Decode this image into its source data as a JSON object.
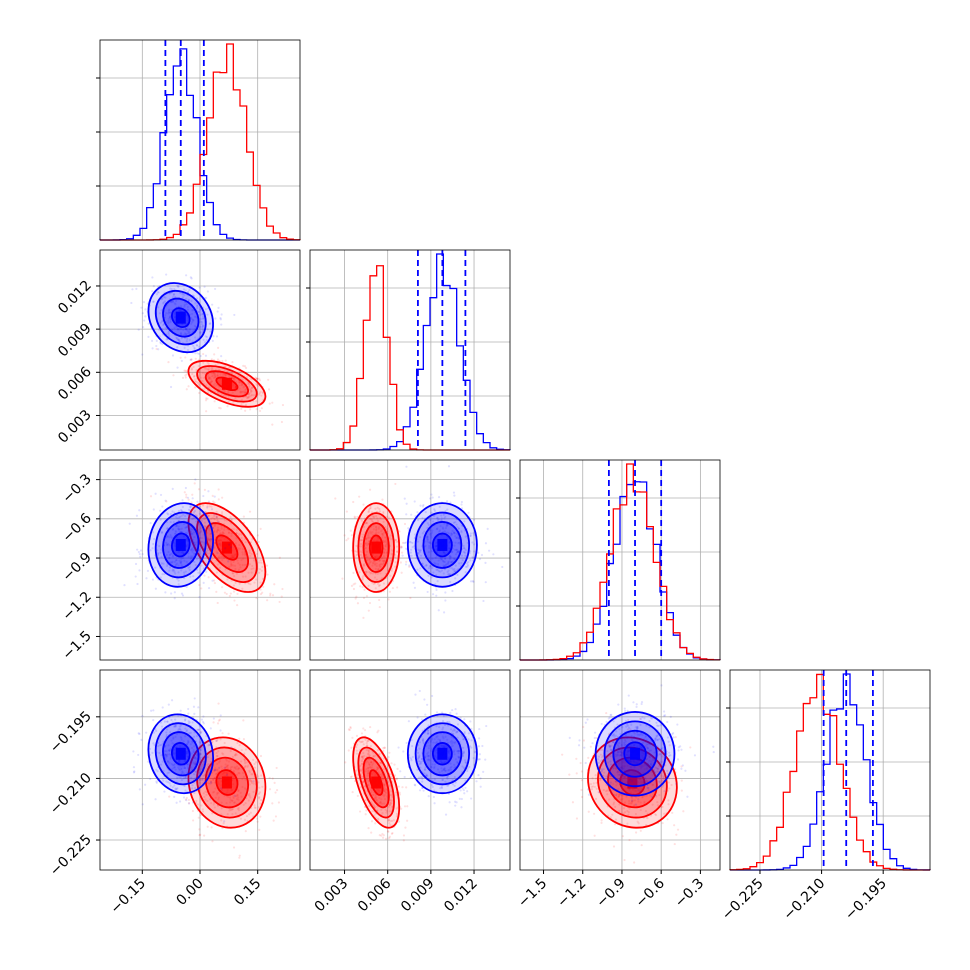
{
  "colors": {
    "series_a": "#0000ff",
    "series_b": "#ff0000",
    "grid": "#b0b0b0",
    "axes": "#000000"
  },
  "chart_data": {
    "type": "corner",
    "series": [
      {
        "color": "#0000ff",
        "medians": [
          -0.05,
          0.0098,
          -0.8,
          -0.204
        ],
        "quantiles": [
          [
            -0.09,
            -0.05,
            0.01
          ],
          [
            0.0081,
            0.0098,
            0.0114
          ],
          [
            -1.0,
            -0.8,
            -0.6
          ],
          [
            -0.2095,
            -0.204,
            -0.1975
          ]
        ],
        "sd": [
          0.042,
          0.0012,
          0.16,
          0.0048
        ]
      },
      {
        "color": "#ff0000",
        "medians": [
          0.07,
          0.0052,
          -0.82,
          -0.211
        ],
        "sd": [
          0.05,
          0.0008,
          0.17,
          0.0055
        ]
      }
    ],
    "correlations_a": {
      "1,0": -0.2,
      "2,0": 0.1,
      "2,1": 0.0,
      "3,0": -0.1,
      "3,1": 0.0,
      "3,2": 0.0
    },
    "correlations_b": {
      "1,0": -0.55,
      "2,0": -0.55,
      "2,1": 0.0,
      "3,0": -0.1,
      "3,1": -0.55,
      "3,2": -0.1
    },
    "axes": [
      {
        "range": [
          -0.26,
          0.26
        ],
        "ticks": [
          -0.15,
          0.0,
          0.15
        ],
        "tick_labels": [
          "−0.15",
          "0.00",
          "0.15"
        ]
      },
      {
        "range": [
          0.0006,
          0.0145
        ],
        "ticks": [
          0.003,
          0.006,
          0.009,
          0.012
        ],
        "tick_labels": [
          "0.003",
          "0.006",
          "0.009",
          "0.012"
        ]
      },
      {
        "range": [
          -1.68,
          -0.15
        ],
        "ticks": [
          -1.5,
          -1.2,
          -0.9,
          -0.6,
          -0.3
        ],
        "tick_labels": [
          "−1.5",
          "−1.2",
          "−0.9",
          "−0.6",
          "−0.3"
        ]
      },
      {
        "range": [
          -0.2323,
          -0.1836
        ],
        "ticks": [
          -0.225,
          -0.21,
          -0.195
        ],
        "tick_labels": [
          "−0.225",
          "−0.210",
          "−0.195"
        ]
      }
    ],
    "bins": 30,
    "grid": true
  }
}
